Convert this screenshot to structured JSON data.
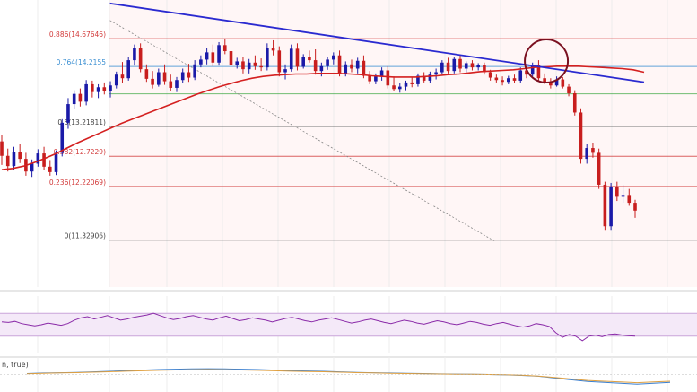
{
  "chart_data": [
    {
      "type": "candlestick",
      "panel": "price",
      "grid": true,
      "ylim": [
        10.55,
        15.32
      ],
      "fib_levels": [
        {
          "ratio": "0.886",
          "price": 14.67646,
          "label": "0.886(14.67646)",
          "color": "#d23b3b"
        },
        {
          "ratio": "0.764",
          "price": 14.2155,
          "label": "0.764(14.2155",
          "color": "#3b8fd2"
        },
        {
          "ratio": "0.618",
          "price": 13.76,
          "label": "",
          "color": "#4caf50"
        },
        {
          "ratio": "0.5",
          "price": 13.21811,
          "label": "0.5(13.21811)",
          "color": "#555555"
        },
        {
          "ratio": "0.382",
          "price": 12.7229,
          "label": "0.382(12.7229)",
          "color": "#d23b3b"
        },
        {
          "ratio": "0.236",
          "price": 12.22069,
          "label": "0.236(12.22069)",
          "color": "#d23b3b"
        },
        {
          "ratio": "0",
          "price": 11.32906,
          "label": "0(11.32906)",
          "color": "#555555"
        }
      ],
      "candles": [
        [
          12.97,
          13.08,
          12.58,
          12.73
        ],
        [
          12.73,
          12.85,
          12.47,
          12.56
        ],
        [
          12.56,
          12.88,
          12.5,
          12.79
        ],
        [
          12.79,
          12.93,
          12.61,
          12.68
        ],
        [
          12.68,
          12.78,
          12.4,
          12.47
        ],
        [
          12.47,
          12.67,
          12.38,
          12.6
        ],
        [
          12.6,
          12.84,
          12.55,
          12.77
        ],
        [
          12.77,
          12.88,
          12.49,
          12.55
        ],
        [
          12.55,
          12.66,
          12.4,
          12.46
        ],
        [
          12.46,
          12.82,
          12.41,
          12.78
        ],
        [
          12.78,
          13.34,
          12.72,
          13.28
        ],
        [
          13.28,
          13.69,
          13.18,
          13.59
        ],
        [
          13.59,
          13.82,
          13.51,
          13.76
        ],
        [
          13.76,
          13.85,
          13.55,
          13.63
        ],
        [
          13.63,
          13.99,
          13.57,
          13.92
        ],
        [
          13.92,
          13.98,
          13.7,
          13.79
        ],
        [
          13.79,
          13.92,
          13.69,
          13.87
        ],
        [
          13.87,
          13.95,
          13.75,
          13.81
        ],
        [
          13.81,
          13.97,
          13.7,
          13.9
        ],
        [
          13.9,
          14.13,
          13.85,
          14.08
        ],
        [
          14.08,
          14.29,
          13.94,
          14.02
        ],
        [
          14.02,
          14.38,
          13.98,
          14.32
        ],
        [
          14.32,
          14.58,
          14.23,
          14.52
        ],
        [
          14.52,
          14.6,
          14.12,
          14.17
        ],
        [
          14.17,
          14.25,
          13.96,
          14.01
        ],
        [
          14.01,
          14.14,
          13.85,
          13.91
        ],
        [
          13.91,
          14.18,
          13.88,
          14.12
        ],
        [
          14.12,
          14.25,
          13.91,
          13.97
        ],
        [
          13.97,
          14.08,
          13.81,
          13.86
        ],
        [
          13.86,
          14.04,
          13.79,
          13.99
        ],
        [
          13.99,
          14.18,
          13.94,
          14.12
        ],
        [
          14.12,
          14.26,
          13.96,
          14.03
        ],
        [
          14.03,
          14.32,
          13.99,
          14.25
        ],
        [
          14.25,
          14.4,
          14.2,
          14.33
        ],
        [
          14.33,
          14.52,
          14.25,
          14.45
        ],
        [
          14.45,
          14.58,
          14.22,
          14.28
        ],
        [
          14.28,
          14.62,
          14.23,
          14.57
        ],
        [
          14.57,
          14.68,
          14.42,
          14.47
        ],
        [
          14.47,
          14.55,
          14.18,
          14.24
        ],
        [
          14.24,
          14.36,
          14.18,
          14.3
        ],
        [
          14.3,
          14.38,
          14.1,
          14.17
        ],
        [
          14.17,
          14.34,
          14.1,
          14.28
        ],
        [
          14.28,
          14.4,
          14.16,
          14.22
        ],
        [
          14.22,
          14.35,
          14.14,
          14.2
        ],
        [
          14.2,
          14.6,
          14.15,
          14.52
        ],
        [
          14.52,
          14.65,
          14.4,
          14.48
        ],
        [
          14.48,
          14.55,
          14.05,
          14.12
        ],
        [
          14.12,
          14.25,
          14.0,
          14.17
        ],
        [
          14.17,
          14.58,
          14.13,
          14.51
        ],
        [
          14.51,
          14.6,
          14.15,
          14.21
        ],
        [
          14.21,
          14.42,
          14.18,
          14.38
        ],
        [
          14.38,
          14.48,
          14.28,
          14.32
        ],
        [
          14.32,
          14.5,
          14.08,
          14.14
        ],
        [
          14.14,
          14.28,
          14.05,
          14.22
        ],
        [
          14.22,
          14.38,
          14.16,
          14.33
        ],
        [
          14.33,
          14.45,
          14.25,
          14.4
        ],
        [
          14.4,
          14.48,
          14.05,
          14.1
        ],
        [
          14.1,
          14.3,
          14.05,
          14.25
        ],
        [
          14.25,
          14.33,
          14.12,
          14.18
        ],
        [
          14.18,
          14.36,
          14.1,
          14.31
        ],
        [
          14.31,
          14.4,
          14.02,
          14.06
        ],
        [
          14.06,
          14.14,
          13.92,
          13.97
        ],
        [
          13.97,
          14.1,
          13.92,
          14.05
        ],
        [
          14.05,
          14.2,
          13.98,
          14.15
        ],
        [
          14.15,
          14.22,
          13.85,
          13.9
        ],
        [
          13.9,
          14.05,
          13.8,
          13.84
        ],
        [
          13.84,
          13.94,
          13.78,
          13.88
        ],
        [
          13.88,
          13.98,
          13.82,
          13.95
        ],
        [
          13.95,
          14.03,
          13.87,
          13.92
        ],
        [
          13.92,
          14.1,
          13.88,
          14.06
        ],
        [
          14.06,
          14.12,
          13.95,
          13.98
        ],
        [
          13.98,
          14.13,
          13.94,
          14.08
        ],
        [
          14.08,
          14.18,
          14.0,
          14.12
        ],
        [
          14.12,
          14.32,
          14.08,
          14.28
        ],
        [
          14.28,
          14.36,
          14.1,
          14.14
        ],
        [
          14.14,
          14.38,
          14.1,
          14.34
        ],
        [
          14.34,
          14.4,
          14.12,
          14.18
        ],
        [
          14.18,
          14.3,
          14.12,
          14.27
        ],
        [
          14.27,
          14.32,
          14.15,
          14.2
        ],
        [
          14.2,
          14.27,
          14.15,
          14.24
        ],
        [
          14.24,
          14.28,
          14.08,
          14.12
        ],
        [
          14.12,
          14.16,
          13.98,
          14.03
        ],
        [
          14.03,
          14.08,
          13.95,
          13.99
        ],
        [
          13.99,
          14.05,
          13.9,
          13.96
        ],
        [
          13.96,
          14.06,
          13.92,
          14.02
        ],
        [
          14.02,
          14.08,
          13.94,
          13.98
        ],
        [
          13.98,
          14.2,
          13.94,
          14.15
        ],
        [
          14.15,
          14.22,
          14.02,
          14.08
        ],
        [
          14.08,
          14.28,
          14.05,
          14.24
        ],
        [
          14.24,
          14.32,
          13.98,
          14.02
        ],
        [
          14.02,
          14.1,
          13.92,
          13.96
        ],
        [
          13.96,
          14.02,
          13.85,
          13.9
        ],
        [
          13.9,
          14.05,
          13.88,
          14.0
        ],
        [
          14.0,
          14.04,
          13.85,
          13.88
        ],
        [
          13.88,
          13.92,
          13.72,
          13.77
        ],
        [
          13.77,
          13.82,
          13.4,
          13.45
        ],
        [
          13.45,
          13.52,
          12.6,
          12.68
        ],
        [
          12.68,
          12.92,
          12.6,
          12.86
        ],
        [
          12.86,
          12.95,
          12.7,
          12.78
        ],
        [
          12.78,
          12.85,
          12.18,
          12.25
        ],
        [
          12.25,
          12.3,
          11.5,
          11.56
        ],
        [
          11.56,
          12.28,
          11.5,
          12.22
        ],
        [
          12.22,
          12.3,
          11.98,
          12.05
        ],
        [
          12.05,
          12.25,
          11.95,
          12.08
        ],
        [
          12.08,
          12.18,
          11.9,
          11.95
        ],
        [
          11.95,
          12.0,
          11.7,
          11.82
        ]
      ],
      "ema": [
        12.5,
        12.52,
        12.56,
        12.62,
        12.69,
        12.77,
        12.86,
        12.95,
        13.03,
        13.11,
        13.19,
        13.27,
        13.34,
        13.41,
        13.48,
        13.55,
        13.62,
        13.69,
        13.76,
        13.82,
        13.88,
        13.93,
        13.98,
        14.02,
        14.05,
        14.07,
        14.08,
        14.09,
        14.09,
        14.1,
        14.1,
        14.1,
        14.09,
        14.08,
        14.06,
        14.05,
        14.04,
        14.04,
        14.04,
        14.05,
        14.06,
        14.08,
        14.09,
        14.11,
        14.13,
        14.14,
        14.15,
        14.16,
        14.18,
        14.2,
        14.21,
        14.22,
        14.22,
        14.22,
        14.21,
        14.2,
        14.19,
        14.18,
        14.16,
        14.12
      ],
      "trendline": {
        "from": [
          0.141,
          14.98
        ],
        "to": [
          0.915,
          13.94
        ]
      },
      "diagonal": {
        "from": [
          0.141,
          14.98
        ],
        "to": [
          0.633,
          11.31
        ]
      },
      "circle_marker": {
        "x": 0.78,
        "price": 14.47
      }
    },
    {
      "type": "line",
      "panel": "rsi",
      "ylim": [
        0,
        100
      ],
      "band": [
        30,
        70
      ],
      "values": [
        55,
        54,
        56,
        52,
        50,
        48,
        50,
        53,
        51,
        49,
        52,
        58,
        62,
        64,
        60,
        63,
        66,
        62,
        58,
        60,
        63,
        65,
        67,
        70,
        66,
        62,
        59,
        61,
        64,
        66,
        63,
        60,
        58,
        62,
        65,
        61,
        57,
        59,
        62,
        60,
        58,
        55,
        58,
        61,
        63,
        60,
        57,
        55,
        58,
        60,
        62,
        59,
        56,
        53,
        55,
        58,
        60,
        57,
        54,
        52,
        55,
        58,
        56,
        53,
        51,
        54,
        57,
        55,
        52,
        50,
        53,
        56,
        54,
        51,
        49,
        52,
        54,
        51,
        48,
        46,
        48,
        52,
        50,
        47,
        36,
        28,
        33,
        30,
        22,
        30,
        32,
        29,
        33,
        34,
        32,
        31,
        30
      ]
    },
    {
      "type": "line",
      "panel": "macd",
      "ylim": [
        -1,
        1
      ],
      "label": "n, true)",
      "values": [
        0.05,
        0.08,
        0.1,
        0.12,
        0.15,
        0.18,
        0.22,
        0.25,
        0.28,
        0.3,
        0.32,
        0.33,
        0.32,
        0.3,
        0.28,
        0.25,
        0.22,
        0.2,
        0.18,
        0.15,
        0.12,
        0.1,
        0.08,
        0.06,
        0.05,
        0.03,
        0.02,
        0.01,
        0.0,
        -0.02,
        -0.05,
        -0.1,
        -0.2,
        -0.3,
        -0.4,
        -0.45,
        -0.5,
        -0.55,
        -0.5,
        -0.45
      ]
    }
  ]
}
